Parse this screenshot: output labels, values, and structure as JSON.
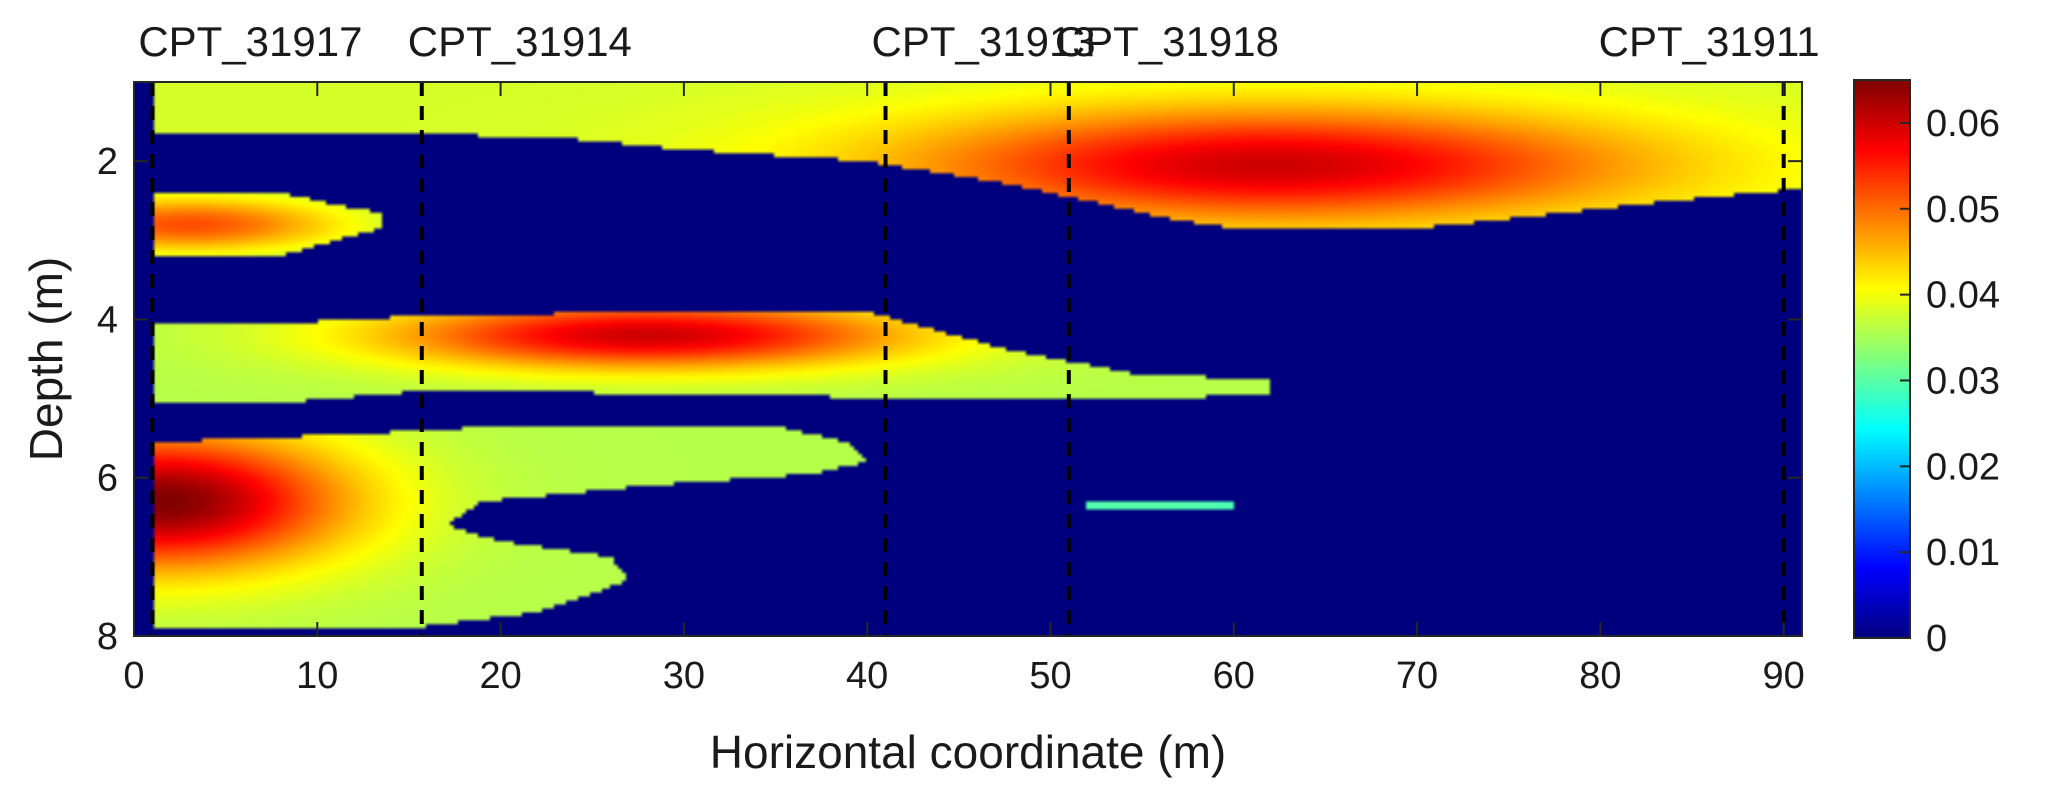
{
  "chart_data": {
    "type": "heatmap",
    "title": "",
    "xlabel": "Horizontal coordinate (m)",
    "ylabel": "Depth (m)",
    "xlim": [
      0,
      91
    ],
    "ylim": [
      8,
      1
    ],
    "x_ticks": [
      0,
      10,
      20,
      30,
      40,
      50,
      60,
      70,
      80,
      90
    ],
    "y_ticks": [
      2,
      4,
      6,
      8
    ],
    "colorbar": {
      "colormap": "jet",
      "range": [
        0,
        0.065
      ],
      "ticks": [
        "0",
        "0.01",
        "0.02",
        "0.03",
        "0.04",
        "0.05",
        "0.06"
      ],
      "tick_values": [
        0,
        0.01,
        0.02,
        0.03,
        0.04,
        0.05,
        0.06
      ]
    },
    "cpt_lines": [
      {
        "name": "CPT_31917",
        "x": 1
      },
      {
        "name": "CPT_31914",
        "x": 15.7
      },
      {
        "name": "CPT_31913",
        "x": 41
      },
      {
        "name": "CPT_31918",
        "x": 51
      },
      {
        "name": "CPT_31911",
        "x": 90
      }
    ],
    "background_value": 0,
    "layers": [
      {
        "name": "layer-top",
        "value_peak": 0.06,
        "value_edge": 0.038,
        "top": [
          [
            1,
            1.0
          ],
          [
            91,
            1.0
          ]
        ],
        "bottom": [
          [
            1,
            1.65
          ],
          [
            16,
            1.65
          ],
          [
            24,
            1.72
          ],
          [
            30,
            1.85
          ],
          [
            40,
            2.0
          ],
          [
            48,
            2.3
          ],
          [
            53,
            2.55
          ],
          [
            57,
            2.75
          ],
          [
            60,
            2.85
          ],
          [
            70,
            2.85
          ],
          [
            80,
            2.6
          ],
          [
            86,
            2.45
          ],
          [
            91,
            2.35
          ]
        ],
        "peak_center": [
          62,
          2.05
        ],
        "peak_radius": [
          14,
          0.5
        ]
      },
      {
        "name": "layer-left-upper",
        "value_peak": 0.052,
        "value_edge": 0.035,
        "top": [
          [
            1,
            2.4
          ],
          [
            8,
            2.4
          ],
          [
            11,
            2.55
          ],
          [
            13.5,
            2.65
          ]
        ],
        "bottom": [
          [
            1,
            3.2
          ],
          [
            8,
            3.2
          ],
          [
            11,
            3.0
          ],
          [
            13.5,
            2.85
          ]
        ],
        "peak_center": [
          3,
          2.8
        ],
        "peak_radius": [
          6,
          0.25
        ]
      },
      {
        "name": "layer-mid",
        "value_peak": 0.06,
        "value_edge": 0.036,
        "top": [
          [
            1,
            4.05
          ],
          [
            8,
            4.05
          ],
          [
            16,
            3.95
          ],
          [
            30,
            3.9
          ],
          [
            40,
            3.9
          ],
          [
            48,
            4.4
          ],
          [
            55,
            4.7
          ],
          [
            62,
            4.75
          ]
        ],
        "bottom": [
          [
            1,
            5.05
          ],
          [
            8,
            5.05
          ],
          [
            16,
            4.9
          ],
          [
            34,
            4.95
          ],
          [
            42,
            5.0
          ],
          [
            55,
            5.0
          ],
          [
            62,
            4.95
          ]
        ],
        "peak_center": [
          28,
          4.2
        ],
        "peak_radius": [
          10,
          0.3
        ]
      },
      {
        "name": "layer-lower",
        "value_peak": 0.065,
        "value_edge": 0.036,
        "top": [
          [
            1,
            5.55
          ],
          [
            12,
            5.45
          ],
          [
            20,
            5.35
          ],
          [
            35,
            5.35
          ],
          [
            39,
            5.55
          ],
          [
            40,
            5.8
          ]
        ],
        "bottom": [
          [
            1,
            7.9
          ],
          [
            15,
            7.9
          ],
          [
            22,
            7.7
          ],
          [
            27,
            7.3
          ],
          [
            26,
            7.0
          ],
          [
            20,
            6.8
          ],
          [
            17,
            6.6
          ],
          [
            19,
            6.3
          ],
          [
            28,
            6.1
          ],
          [
            37,
            5.95
          ],
          [
            40,
            5.8
          ]
        ],
        "peak_center": [
          1.5,
          6.3
        ],
        "peak_radius": [
          7,
          0.6
        ]
      },
      {
        "name": "layer-thin",
        "value_peak": 0.03,
        "value_edge": 0.028,
        "top": [
          [
            52,
            6.28
          ],
          [
            60,
            6.28
          ]
        ],
        "bottom": [
          [
            52,
            6.42
          ],
          [
            60,
            6.42
          ]
        ],
        "peak_center": [
          55,
          6.35
        ],
        "peak_radius": [
          5,
          0.1
        ]
      }
    ]
  }
}
